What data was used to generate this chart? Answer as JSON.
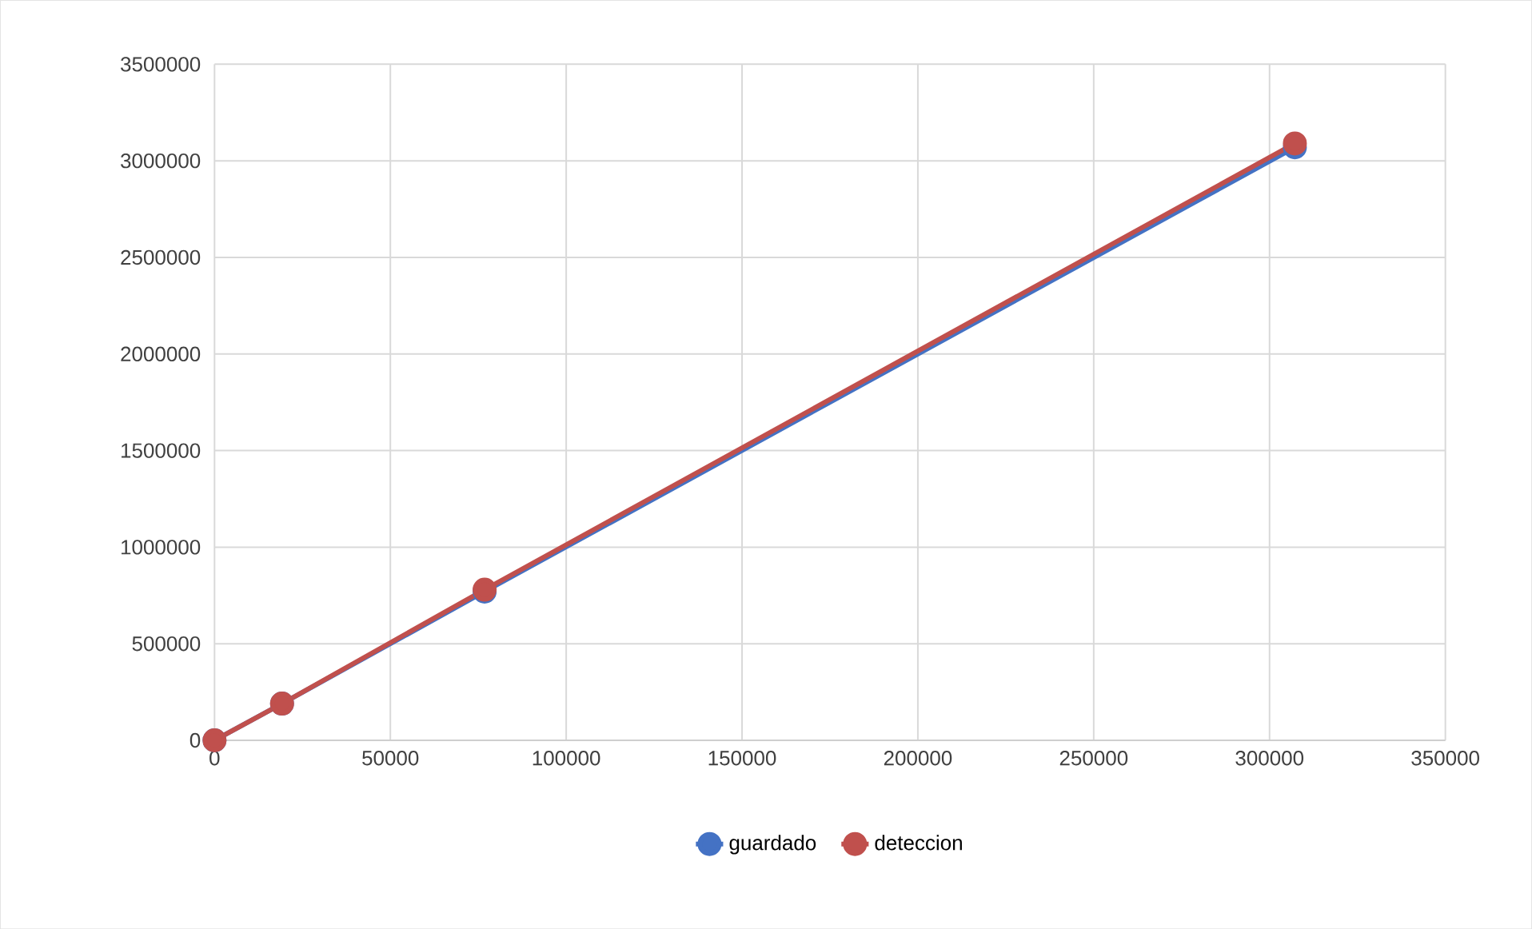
{
  "chart_data": {
    "type": "line",
    "x": [
      0,
      19200,
      76800,
      307200
    ],
    "series": [
      {
        "name": "guardado",
        "color": "#4472c4",
        "values": [
          0,
          190000,
          770000,
          3070000
        ]
      },
      {
        "name": "deteccion",
        "color": "#c0504d",
        "values": [
          0,
          190000,
          780000,
          3090000
        ]
      }
    ],
    "xlim": [
      0,
      350000
    ],
    "xticks": [
      0,
      50000,
      100000,
      150000,
      200000,
      250000,
      300000,
      350000
    ],
    "ylim": [
      0,
      3500000
    ],
    "yticks": [
      0,
      500000,
      1000000,
      1500000,
      2000000,
      2500000,
      3000000,
      3500000
    ],
    "grid": true,
    "legend": "bottom",
    "marker": "circle",
    "line_style": "solid"
  }
}
